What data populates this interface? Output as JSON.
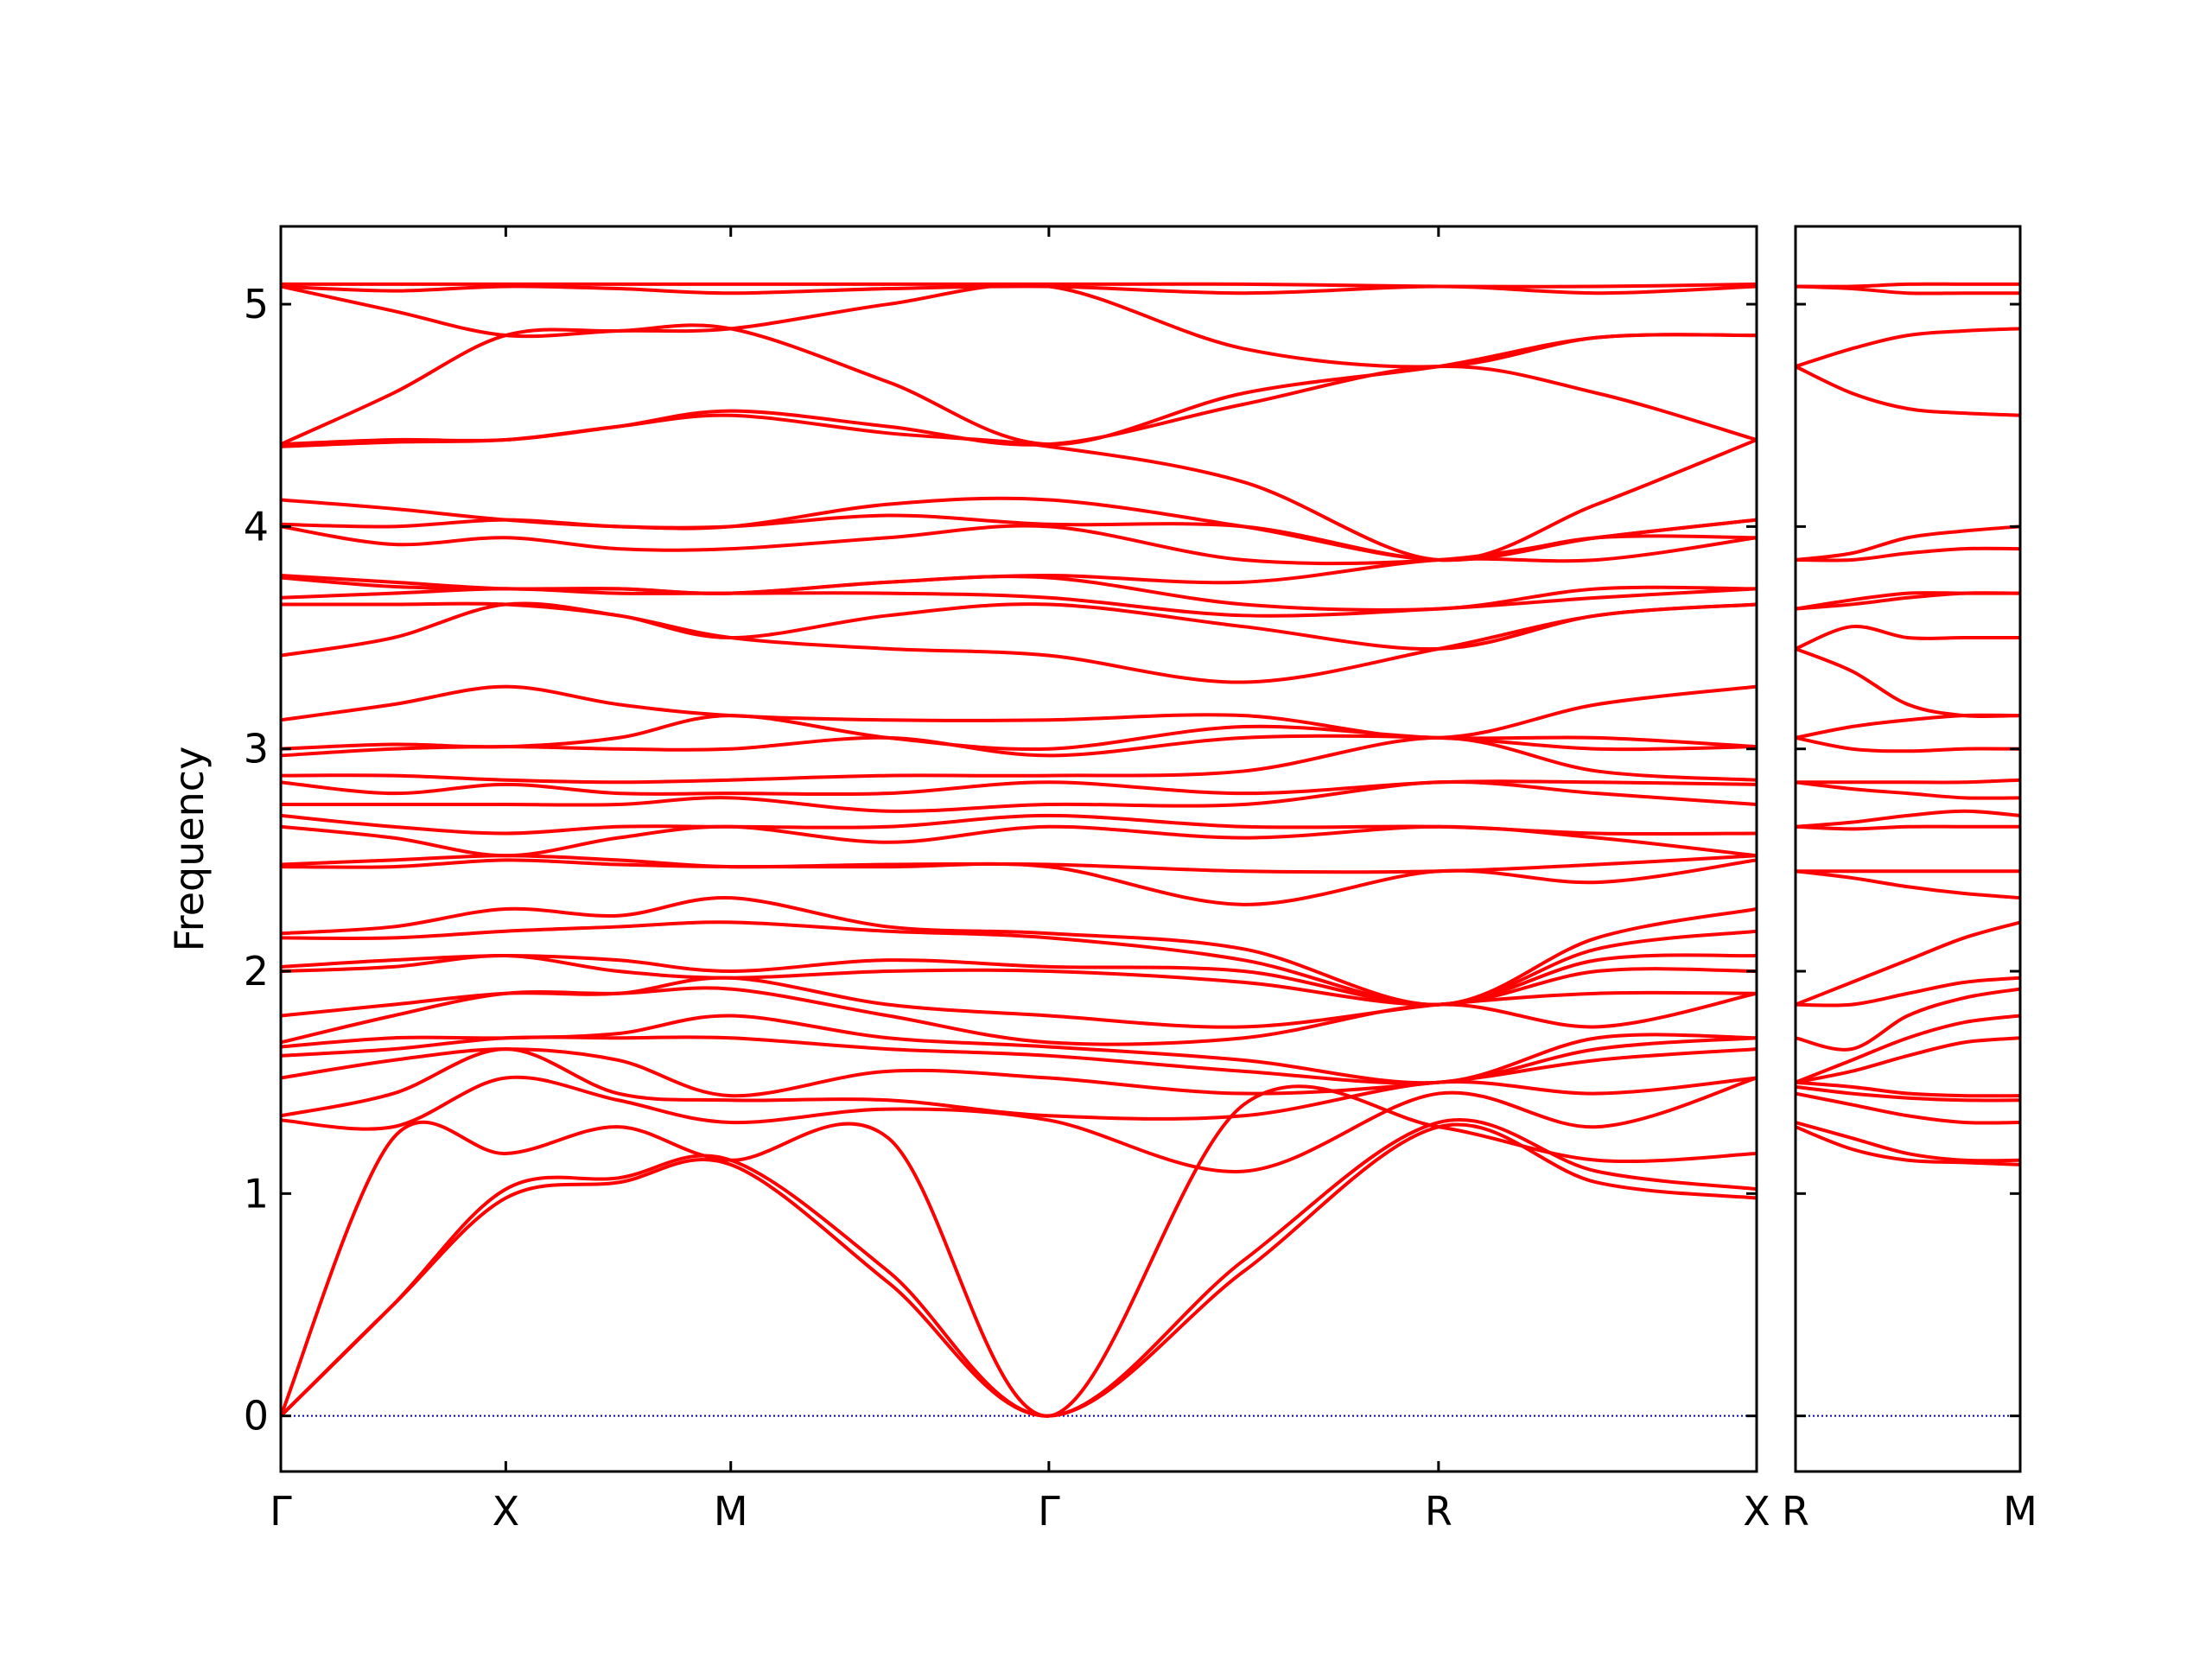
{
  "chart_data": [
    {
      "type": "line",
      "ylabel": "Frequency",
      "color": "#ff0000",
      "zero_line_color": "#0000cc",
      "xlim": [
        0,
        6.56
      ],
      "ylim": [
        -0.25,
        5.35
      ],
      "yticks": [
        0,
        1,
        2,
        3,
        4,
        5
      ],
      "ytick_labels": true,
      "xticks": [
        {
          "value": 0,
          "label": "Γ"
        },
        {
          "value": 1,
          "label": "X"
        },
        {
          "value": 2,
          "label": "M"
        },
        {
          "value": 3.414,
          "label": "Γ"
        },
        {
          "value": 5.146,
          "label": "R"
        },
        {
          "value": 6.56,
          "label": "X"
        }
      ],
      "x": [
        0,
        0.5,
        1,
        1.5,
        2,
        2.7,
        3.414,
        4.28,
        5.146,
        5.85,
        6.56
      ],
      "series": [
        {
          "values": [
            0,
            0.5,
            0.98,
            1.05,
            1.13,
            0.6,
            0,
            0.65,
            1.3,
            1.05,
            0.98
          ]
        },
        {
          "values": [
            0,
            0.5,
            1.02,
            1.07,
            1.15,
            0.65,
            0,
            0.7,
            1.32,
            1.1,
            1.02
          ]
        },
        {
          "values": [
            0,
            1.25,
            1.18,
            1.3,
            1.15,
            1.25,
            0,
            1.4,
            1.3,
            1.15,
            1.18
          ]
        },
        {
          "values": [
            1.33,
            1.3,
            1.52,
            1.42,
            1.32,
            1.38,
            1.33,
            1.1,
            1.45,
            1.3,
            1.52
          ]
        },
        {
          "values": [
            1.35,
            1.45,
            1.65,
            1.45,
            1.42,
            1.42,
            1.35,
            1.35,
            1.5,
            1.45,
            1.52
          ]
        },
        {
          "values": [
            1.52,
            1.6,
            1.65,
            1.6,
            1.44,
            1.55,
            1.52,
            1.45,
            1.5,
            1.6,
            1.65
          ]
        },
        {
          "values": [
            1.62,
            1.65,
            1.7,
            1.7,
            1.7,
            1.65,
            1.62,
            1.55,
            1.5,
            1.65,
            1.7
          ]
        },
        {
          "values": [
            1.66,
            1.7,
            1.7,
            1.72,
            1.8,
            1.7,
            1.66,
            1.6,
            1.5,
            1.7,
            1.7
          ]
        },
        {
          "values": [
            1.68,
            1.8,
            1.9,
            1.9,
            1.92,
            1.8,
            1.68,
            1.7,
            1.85,
            1.75,
            1.9
          ]
        },
        {
          "values": [
            1.8,
            1.85,
            1.9,
            1.9,
            1.97,
            1.85,
            1.8,
            1.75,
            1.85,
            1.9,
            1.9
          ]
        },
        {
          "values": [
            2.0,
            2.02,
            2.07,
            2.0,
            1.97,
            2.0,
            2.0,
            1.95,
            1.85,
            2.0,
            2.0
          ]
        },
        {
          "values": [
            2.02,
            2.05,
            2.07,
            2.05,
            2.0,
            2.05,
            2.02,
            2.0,
            1.85,
            2.05,
            2.07
          ]
        },
        {
          "values": [
            2.15,
            2.15,
            2.18,
            2.2,
            2.22,
            2.18,
            2.15,
            2.05,
            1.85,
            2.1,
            2.18
          ]
        },
        {
          "values": [
            2.17,
            2.2,
            2.28,
            2.25,
            2.33,
            2.2,
            2.17,
            2.1,
            1.85,
            2.15,
            2.28
          ]
        },
        {
          "values": [
            2.47,
            2.47,
            2.5,
            2.48,
            2.47,
            2.47,
            2.47,
            2.3,
            2.45,
            2.4,
            2.5
          ]
        },
        {
          "values": [
            2.48,
            2.5,
            2.52,
            2.5,
            2.47,
            2.48,
            2.48,
            2.45,
            2.45,
            2.48,
            2.52
          ]
        },
        {
          "values": [
            2.65,
            2.6,
            2.52,
            2.6,
            2.65,
            2.58,
            2.65,
            2.6,
            2.65,
            2.6,
            2.52
          ]
        },
        {
          "values": [
            2.7,
            2.65,
            2.62,
            2.65,
            2.65,
            2.65,
            2.7,
            2.65,
            2.65,
            2.62,
            2.62
          ]
        },
        {
          "values": [
            2.75,
            2.75,
            2.75,
            2.75,
            2.78,
            2.72,
            2.75,
            2.75,
            2.85,
            2.8,
            2.75
          ]
        },
        {
          "values": [
            2.85,
            2.8,
            2.84,
            2.8,
            2.8,
            2.8,
            2.85,
            2.8,
            2.85,
            2.85,
            2.84
          ]
        },
        {
          "values": [
            2.88,
            2.88,
            2.86,
            2.85,
            2.86,
            2.88,
            2.88,
            2.9,
            3.05,
            2.9,
            2.86
          ]
        },
        {
          "values": [
            2.97,
            3.0,
            3.01,
            3.0,
            3.0,
            3.05,
            2.97,
            3.05,
            3.05,
            3.0,
            3.01
          ]
        },
        {
          "values": [
            3.0,
            3.02,
            3.01,
            3.05,
            3.15,
            3.05,
            3.0,
            3.1,
            3.05,
            3.05,
            3.01
          ]
        },
        {
          "values": [
            3.13,
            3.2,
            3.28,
            3.2,
            3.15,
            3.13,
            3.13,
            3.15,
            3.05,
            3.2,
            3.28
          ]
        },
        {
          "values": [
            3.42,
            3.5,
            3.65,
            3.6,
            3.5,
            3.45,
            3.42,
            3.3,
            3.45,
            3.6,
            3.65
          ]
        },
        {
          "values": [
            3.65,
            3.65,
            3.65,
            3.6,
            3.5,
            3.6,
            3.65,
            3.55,
            3.45,
            3.6,
            3.65
          ]
        },
        {
          "values": [
            3.68,
            3.7,
            3.72,
            3.7,
            3.7,
            3.7,
            3.68,
            3.6,
            3.63,
            3.68,
            3.72
          ]
        },
        {
          "values": [
            3.77,
            3.73,
            3.72,
            3.72,
            3.7,
            3.75,
            3.77,
            3.65,
            3.63,
            3.72,
            3.72
          ]
        },
        {
          "values": [
            3.78,
            3.75,
            3.72,
            3.72,
            3.7,
            3.75,
            3.78,
            3.75,
            3.85,
            3.85,
            3.95
          ]
        },
        {
          "values": [
            4.0,
            3.92,
            3.95,
            3.9,
            3.9,
            3.95,
            4.0,
            3.85,
            3.85,
            3.95,
            4.03
          ]
        },
        {
          "values": [
            4.01,
            4.0,
            4.03,
            4.0,
            4.0,
            4.05,
            4.01,
            4.0,
            3.85,
            3.95,
            3.95
          ]
        },
        {
          "values": [
            4.12,
            4.08,
            4.03,
            4.0,
            4.0,
            4.1,
            4.12,
            4.0,
            3.85,
            3.95,
            4.03
          ]
        },
        {
          "values": [
            4.36,
            4.38,
            4.39,
            4.45,
            4.5,
            4.42,
            4.36,
            4.2,
            3.85,
            4.1,
            4.39
          ]
        },
        {
          "values": [
            4.37,
            4.39,
            4.39,
            4.45,
            4.52,
            4.45,
            4.37,
            4.55,
            4.72,
            4.6,
            4.39
          ]
        },
        {
          "values": [
            4.37,
            4.6,
            4.86,
            4.88,
            4.89,
            4.65,
            4.37,
            4.6,
            4.72,
            4.85,
            4.86
          ]
        },
        {
          "values": [
            5.08,
            4.97,
            4.86,
            4.88,
            4.89,
            5.0,
            5.08,
            4.8,
            4.72,
            4.85,
            4.86
          ]
        },
        {
          "values": [
            5.08,
            5.06,
            5.08,
            5.07,
            5.05,
            5.07,
            5.08,
            5.05,
            5.08,
            5.05,
            5.08
          ]
        },
        {
          "values": [
            5.09,
            5.09,
            5.09,
            5.09,
            5.09,
            5.09,
            5.09,
            5.09,
            5.08,
            5.08,
            5.09
          ]
        }
      ]
    },
    {
      "type": "line",
      "color": "#ff0000",
      "zero_line_color": "#0000cc",
      "xlim": [
        0,
        1.414
      ],
      "ylim": [
        -0.25,
        5.35
      ],
      "yticks": [
        0,
        1,
        2,
        3,
        4,
        5
      ],
      "ytick_labels": false,
      "xticks": [
        {
          "value": 0,
          "label": "R"
        },
        {
          "value": 1.414,
          "label": "M"
        }
      ],
      "x": [
        0,
        0.354,
        0.707,
        1.061,
        1.414
      ],
      "series": [
        {
          "values": [
            1.3,
            1.2,
            1.15,
            1.14,
            1.13
          ]
        },
        {
          "values": [
            1.32,
            1.25,
            1.18,
            1.15,
            1.15
          ]
        },
        {
          "values": [
            1.45,
            1.4,
            1.35,
            1.32,
            1.32
          ]
        },
        {
          "values": [
            1.48,
            1.45,
            1.43,
            1.42,
            1.42
          ]
        },
        {
          "values": [
            1.5,
            1.48,
            1.45,
            1.44,
            1.44
          ]
        },
        {
          "values": [
            1.5,
            1.55,
            1.62,
            1.68,
            1.7
          ]
        },
        {
          "values": [
            1.5,
            1.6,
            1.7,
            1.77,
            1.8
          ]
        },
        {
          "values": [
            1.7,
            1.65,
            1.8,
            1.88,
            1.92
          ]
        },
        {
          "values": [
            1.85,
            1.85,
            1.9,
            1.95,
            1.97
          ]
        },
        {
          "values": [
            1.85,
            1.95,
            2.05,
            2.15,
            2.22
          ]
        },
        {
          "values": [
            2.45,
            2.45,
            2.45,
            2.45,
            2.45
          ]
        },
        {
          "values": [
            2.45,
            2.42,
            2.38,
            2.35,
            2.33
          ]
        },
        {
          "values": [
            2.65,
            2.64,
            2.65,
            2.65,
            2.65
          ]
        },
        {
          "values": [
            2.65,
            2.67,
            2.7,
            2.72,
            2.7
          ]
        },
        {
          "values": [
            2.85,
            2.82,
            2.8,
            2.78,
            2.78
          ]
        },
        {
          "values": [
            2.85,
            2.85,
            2.85,
            2.85,
            2.86
          ]
        },
        {
          "values": [
            3.05,
            3.0,
            2.99,
            3.0,
            3.0
          ]
        },
        {
          "values": [
            3.05,
            3.1,
            3.13,
            3.15,
            3.15
          ]
        },
        {
          "values": [
            3.45,
            3.55,
            3.5,
            3.5,
            3.5
          ]
        },
        {
          "values": [
            3.45,
            3.35,
            3.2,
            3.15,
            3.15
          ]
        },
        {
          "values": [
            3.63,
            3.65,
            3.68,
            3.7,
            3.7
          ]
        },
        {
          "values": [
            3.63,
            3.67,
            3.7,
            3.7,
            3.7
          ]
        },
        {
          "values": [
            3.85,
            3.88,
            3.95,
            3.98,
            4.0
          ]
        },
        {
          "values": [
            3.85,
            3.85,
            3.88,
            3.9,
            3.9
          ]
        },
        {
          "values": [
            4.72,
            4.8,
            4.86,
            4.88,
            4.89
          ]
        },
        {
          "values": [
            4.72,
            4.6,
            4.53,
            4.51,
            4.5
          ]
        },
        {
          "values": [
            5.08,
            5.07,
            5.05,
            5.05,
            5.05
          ]
        },
        {
          "values": [
            5.08,
            5.08,
            5.09,
            5.09,
            5.09
          ]
        }
      ]
    }
  ]
}
